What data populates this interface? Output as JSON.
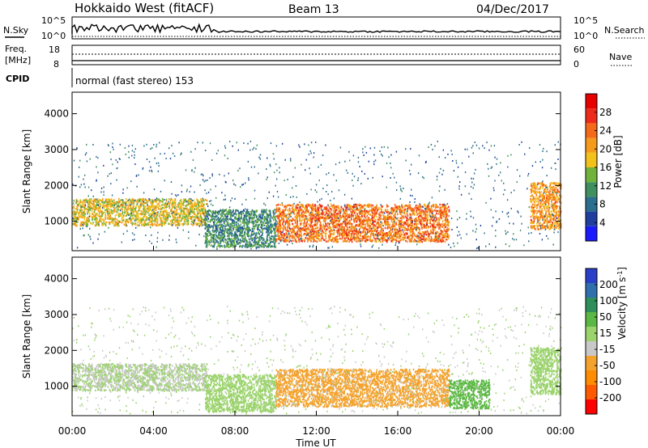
{
  "header": {
    "station": "Hokkaido West (fitACF)",
    "beam": "Beam 13",
    "date": "04/Dec/2017"
  },
  "noise_panel": {
    "left_label": "N.Sky",
    "right_label": "N.Search",
    "left_ticks": [
      "10^5",
      "10^0"
    ],
    "right_ticks": [
      "10^5",
      "10^0"
    ]
  },
  "freq_panel": {
    "left_label_line1": "Freq.",
    "left_label_line2": "[MHz]",
    "left_ticks": [
      "18",
      "8"
    ],
    "right_label": "Nave",
    "right_ticks": [
      "60",
      "0"
    ]
  },
  "cpid_panel": {
    "label": "CPID",
    "program": "normal (fast stereo) 153"
  },
  "colors": {
    "power_scale": [
      "#1a1aff",
      "#1f3f9f",
      "#2c6e8e",
      "#3f8f5f",
      "#6fb33c",
      "#f2c21a",
      "#f59a1a",
      "#f46a1a",
      "#ee2a1a",
      "#e60000"
    ],
    "velocity_scale": [
      "#ff0000",
      "#ff5a00",
      "#ff8c00",
      "#f4a22c",
      "#c8c8c8",
      "#9bd36c",
      "#5cb845",
      "#2f8f5a",
      "#2f6fae",
      "#2a3fc8"
    ]
  },
  "chart_data": [
    {
      "type": "heatmap",
      "name": "power",
      "xlabel": "",
      "ylabel": "Slant Range [km]",
      "x_range": [
        "00:00",
        "24:00"
      ],
      "ylim": [
        180,
        4600
      ],
      "y_ticks": [
        "1000",
        "2000",
        "3000",
        "4000"
      ],
      "colorbar": {
        "label": "Power [dB]",
        "ticks": [
          "4",
          "8",
          "12",
          "16",
          "20",
          "24",
          "28"
        ],
        "range": [
          0,
          32
        ]
      },
      "regions": [
        {
          "t_start": 0.0,
          "t_end": 6.6,
          "r_min": 900,
          "r_max": 1650,
          "value": 18
        },
        {
          "t_start": 6.5,
          "t_end": 10.0,
          "r_min": 300,
          "r_max": 1350,
          "value": 10
        },
        {
          "t_start": 10.0,
          "t_end": 18.5,
          "r_min": 450,
          "r_max": 1500,
          "value": 24
        },
        {
          "t_start": 22.5,
          "t_end": 24.0,
          "r_min": 800,
          "r_max": 2100,
          "value": 22
        }
      ]
    },
    {
      "type": "heatmap",
      "name": "velocity",
      "xlabel": "Time UT",
      "ylabel": "Slant Range [km]",
      "x_ticks": [
        "00:00",
        "04:00",
        "08:00",
        "12:00",
        "16:00",
        "20:00",
        "00:00"
      ],
      "ylim": [
        180,
        4600
      ],
      "y_ticks": [
        "1000",
        "2000",
        "3000",
        "4000"
      ],
      "colorbar": {
        "label": "Velocity [m s^-1]",
        "ticks": [
          "200",
          "100",
          "50",
          "15",
          "-15",
          "-50",
          "-100",
          "-200"
        ],
        "range": [
          -250,
          250
        ]
      },
      "regions": [
        {
          "t_start": 0.0,
          "t_end": 6.6,
          "r_min": 900,
          "r_max": 1650,
          "value": 0
        },
        {
          "t_start": 6.5,
          "t_end": 10.0,
          "r_min": 300,
          "r_max": 1350,
          "value": 40
        },
        {
          "t_start": 10.0,
          "t_end": 18.5,
          "r_min": 450,
          "r_max": 1500,
          "value": -60
        },
        {
          "t_start": 18.5,
          "t_end": 20.5,
          "r_min": 400,
          "r_max": 1200,
          "value": 80
        },
        {
          "t_start": 22.5,
          "t_end": 24.0,
          "r_min": 800,
          "r_max": 2100,
          "value": 30
        }
      ]
    }
  ]
}
